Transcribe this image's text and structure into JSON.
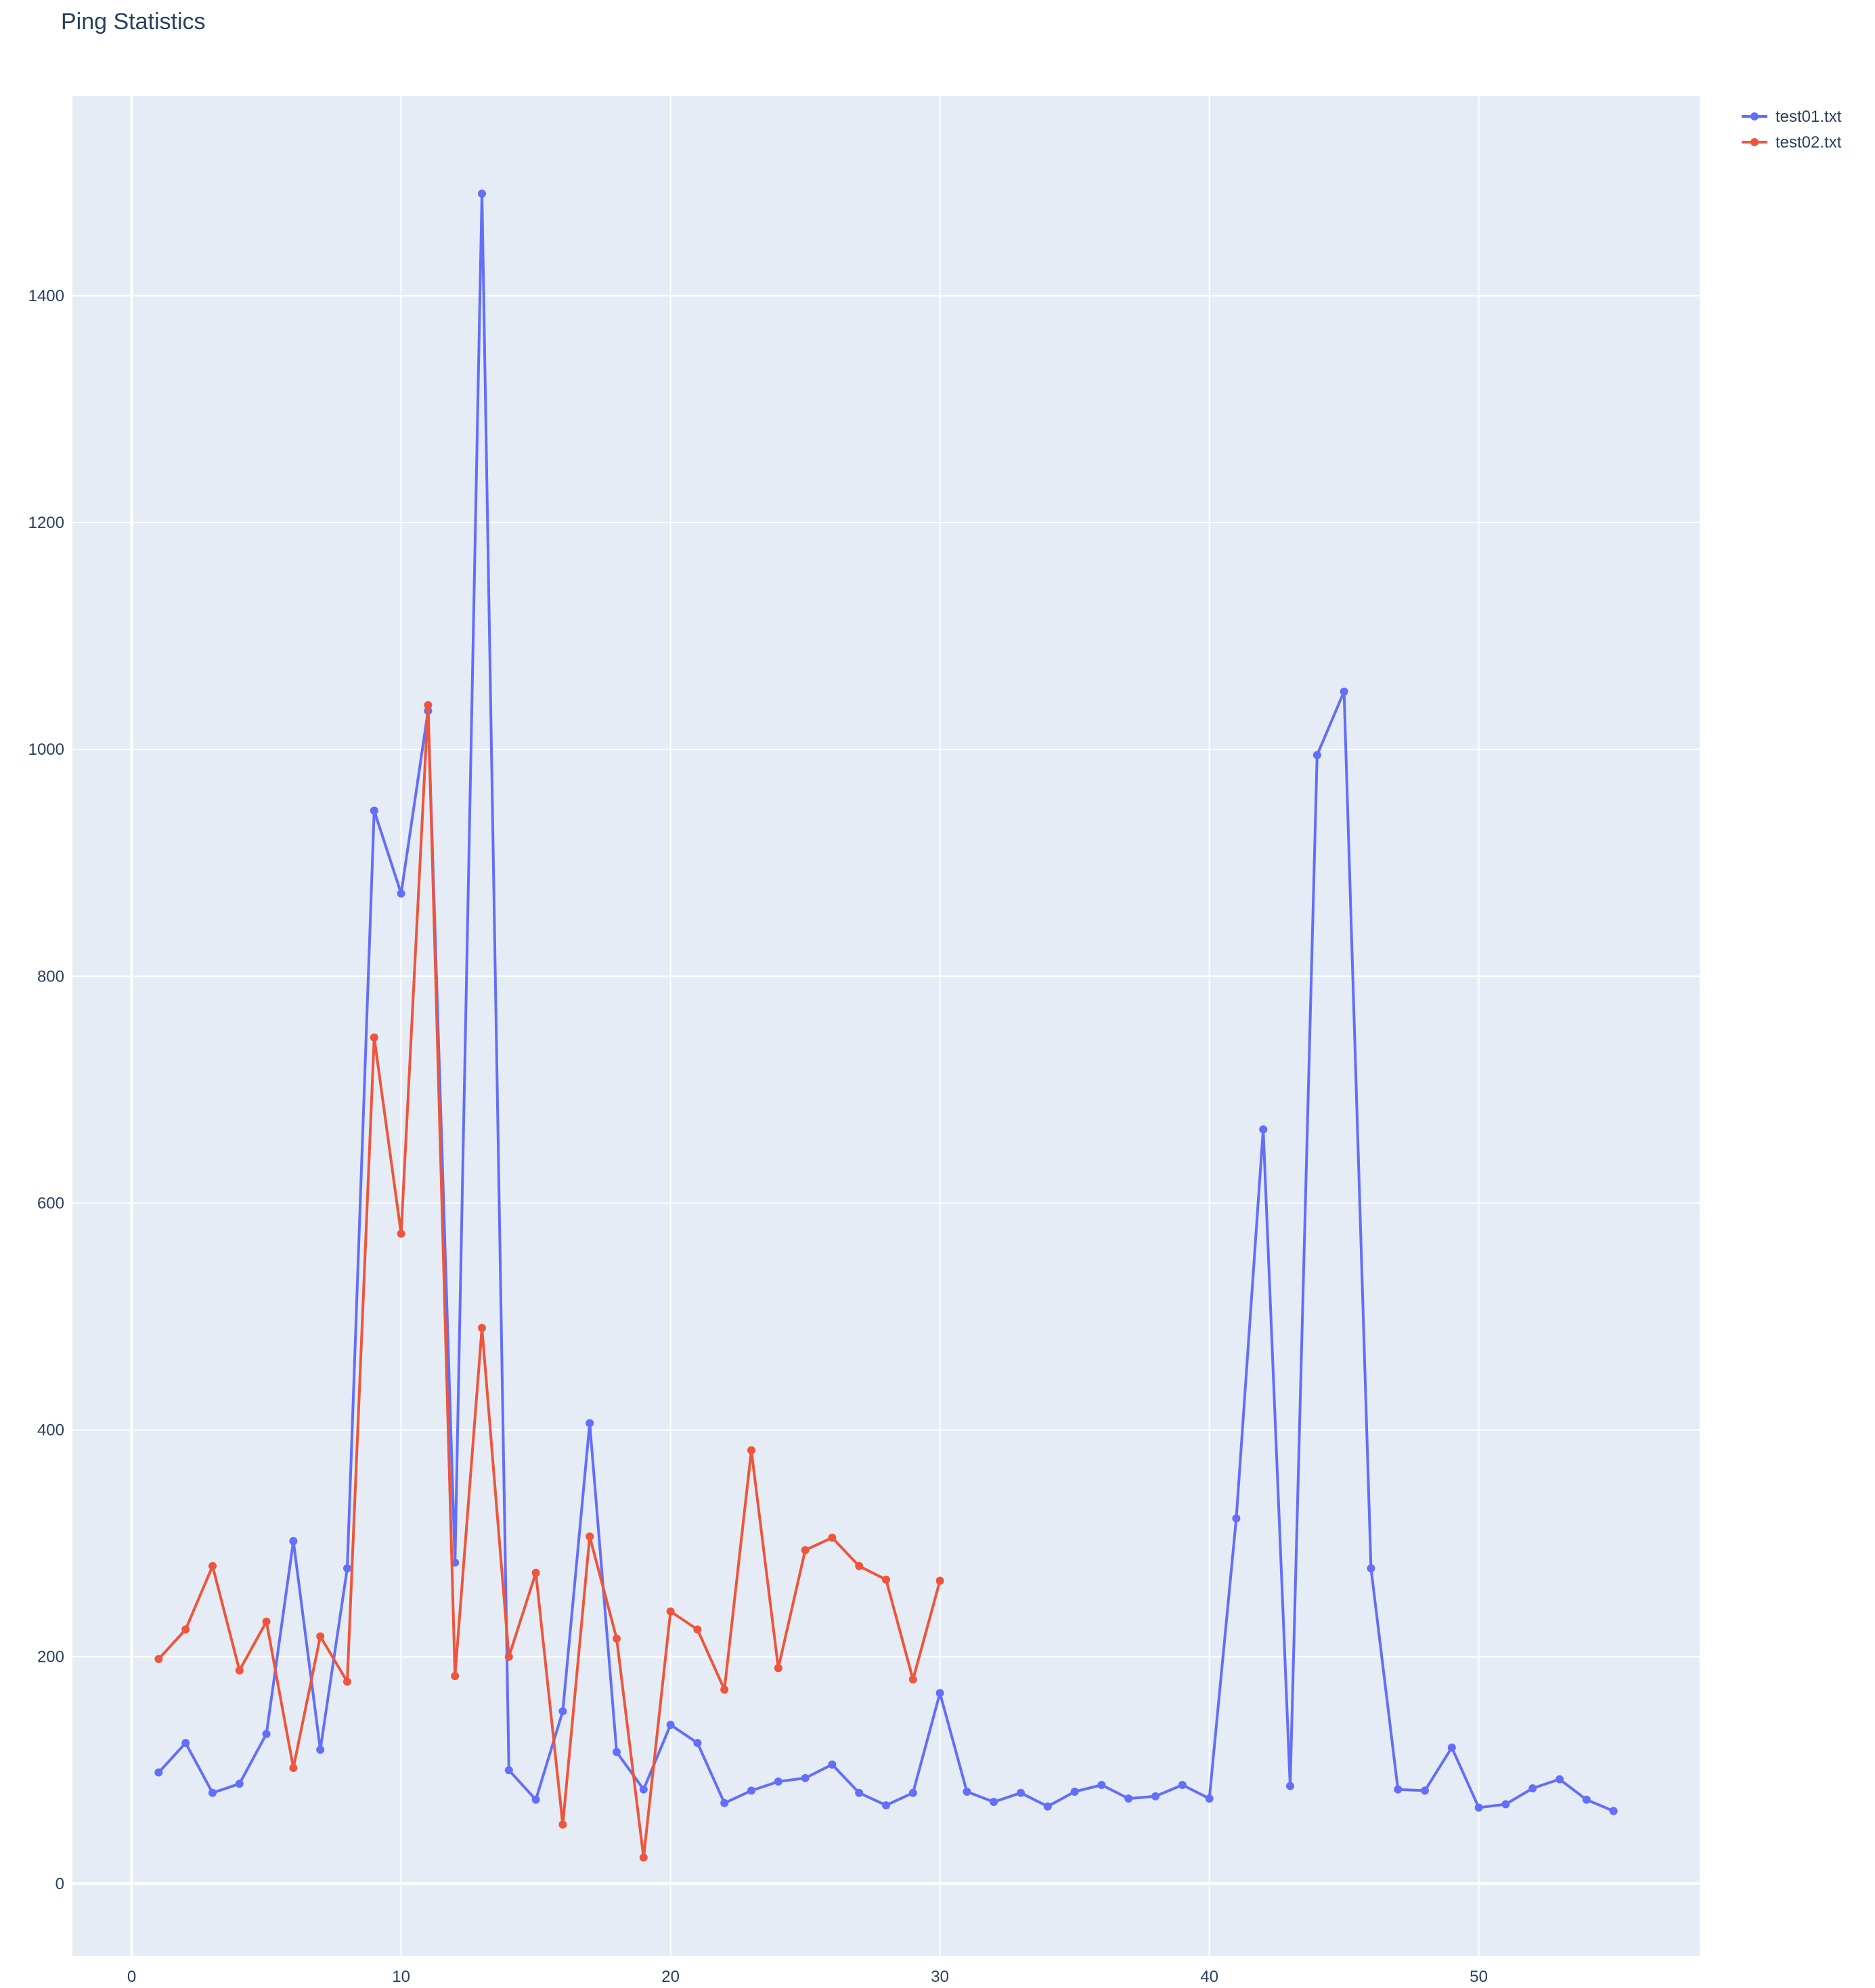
{
  "chart_data": {
    "type": "line",
    "title": "Ping Statistics",
    "xlabel": "",
    "ylabel": "",
    "xlim": [
      -2.2,
      58.2
    ],
    "ylim": [
      -64,
      1576
    ],
    "x_ticks": [
      0,
      10,
      20,
      30,
      40,
      50
    ],
    "y_ticks": [
      0,
      200,
      400,
      600,
      800,
      1000,
      1200,
      1400
    ],
    "grid": true,
    "legend_position": "top-right",
    "series": [
      {
        "name": "test01.txt",
        "color": "#636efa",
        "mode": "lines+markers",
        "x": [
          1,
          2,
          3,
          4,
          5,
          6,
          7,
          8,
          9,
          10,
          11,
          12,
          13,
          14,
          15,
          16,
          17,
          18,
          19,
          20,
          21,
          22,
          23,
          24,
          25,
          26,
          27,
          28,
          29,
          30,
          31,
          32,
          33,
          34,
          35,
          36,
          37,
          38,
          39,
          40,
          41,
          42,
          43,
          44,
          45,
          46,
          47,
          48,
          49,
          50,
          51,
          52,
          53,
          54,
          55
        ],
        "y": [
          98,
          124,
          80,
          88,
          132,
          302,
          118,
          278,
          946,
          873,
          1034,
          283,
          1490,
          100,
          74,
          152,
          406,
          116,
          83,
          140,
          124,
          71,
          82,
          90,
          93,
          105,
          80,
          69,
          80,
          168,
          81,
          72,
          80,
          68,
          81,
          87,
          75,
          77,
          87,
          75,
          322,
          665,
          86,
          995,
          1051,
          278,
          83,
          82,
          120,
          67,
          70,
          84,
          92,
          74,
          64
        ]
      },
      {
        "name": "test02.txt",
        "color": "#ef553b",
        "mode": "lines+markers",
        "x": [
          1,
          2,
          3,
          4,
          5,
          6,
          7,
          8,
          9,
          10,
          11,
          12,
          13,
          14,
          15,
          16,
          17,
          18,
          19,
          20,
          21,
          22,
          23,
          24,
          25,
          26,
          27,
          28,
          29,
          30
        ],
        "y": [
          198,
          224,
          280,
          188,
          231,
          102,
          218,
          178,
          746,
          573,
          1039,
          183,
          490,
          200,
          274,
          52,
          306,
          216,
          23,
          240,
          224,
          171,
          382,
          190,
          294,
          305,
          280,
          268,
          180,
          267
        ]
      }
    ]
  }
}
